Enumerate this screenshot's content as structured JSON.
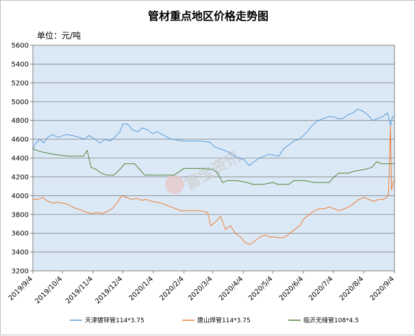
{
  "chart_data": {
    "type": "line",
    "title": "管材重点地区价格走势图",
    "unit_label": "单位：元/吨",
    "watermark": "富宝资讯",
    "ylim": [
      3200,
      5600
    ],
    "ystep": 200,
    "yticks": [
      "3200",
      "3400",
      "3600",
      "3800",
      "4000",
      "4200",
      "4400",
      "4600",
      "4800",
      "5000",
      "5200",
      "5400",
      "5600"
    ],
    "x_start": "2019-09-04",
    "x_end": "2020-09-04",
    "xticks": [
      {
        "label": "2019/9/4",
        "date": "2019-09-04"
      },
      {
        "label": "2019/10/4",
        "date": "2019-10-04"
      },
      {
        "label": "2019/11/4",
        "date": "2019-11-04"
      },
      {
        "label": "2019/12/4",
        "date": "2019-12-04"
      },
      {
        "label": "2020/1/4",
        "date": "2020-01-04"
      },
      {
        "label": "2020/2/4",
        "date": "2020-02-04"
      },
      {
        "label": "2020/3/4",
        "date": "2020-03-04"
      },
      {
        "label": "2020/4/4",
        "date": "2020-04-04"
      },
      {
        "label": "2020/5/4",
        "date": "2020-05-04"
      },
      {
        "label": "2020/6/4",
        "date": "2020-06-04"
      },
      {
        "label": "2020/7/4",
        "date": "2020-07-04"
      },
      {
        "label": "2020/8/4",
        "date": "2020-08-04"
      },
      {
        "label": "2020/9/4",
        "date": "2020-09-04"
      }
    ],
    "grid": true,
    "legend_position": "bottom",
    "plot_bg": "#dbe9f7",
    "series": [
      {
        "name": "天津镀锌管114*3.75",
        "color": "#5b9bd5",
        "points": [
          [
            "2019-09-04",
            4500
          ],
          [
            "2019-09-07",
            4560
          ],
          [
            "2019-09-11",
            4600
          ],
          [
            "2019-09-15",
            4560
          ],
          [
            "2019-09-19",
            4620
          ],
          [
            "2019-09-24",
            4650
          ],
          [
            "2019-09-29",
            4620
          ],
          [
            "2019-10-08",
            4650
          ],
          [
            "2019-10-14",
            4640
          ],
          [
            "2019-10-21",
            4620
          ],
          [
            "2019-10-26",
            4600
          ],
          [
            "2019-10-31",
            4640
          ],
          [
            "2019-11-06",
            4600
          ],
          [
            "2019-11-11",
            4560
          ],
          [
            "2019-11-16",
            4600
          ],
          [
            "2019-11-21",
            4580
          ],
          [
            "2019-11-26",
            4620
          ],
          [
            "2019-12-01",
            4680
          ],
          [
            "2019-12-04",
            4760
          ],
          [
            "2019-12-09",
            4760
          ],
          [
            "2019-12-14",
            4700
          ],
          [
            "2019-12-19",
            4680
          ],
          [
            "2019-12-24",
            4720
          ],
          [
            "2019-12-29",
            4700
          ],
          [
            "2020-01-03",
            4660
          ],
          [
            "2020-01-08",
            4680
          ],
          [
            "2020-01-13",
            4650
          ],
          [
            "2020-01-18",
            4620
          ],
          [
            "2020-01-23",
            4600
          ],
          [
            "2020-02-04",
            4580
          ],
          [
            "2020-02-20",
            4580
          ],
          [
            "2020-03-01",
            4570
          ],
          [
            "2020-03-06",
            4520
          ],
          [
            "2020-03-11",
            4500
          ],
          [
            "2020-03-16",
            4480
          ],
          [
            "2020-03-21",
            4460
          ],
          [
            "2020-03-26",
            4420
          ],
          [
            "2020-03-31",
            4400
          ],
          [
            "2020-04-05",
            4380
          ],
          [
            "2020-04-10",
            4320
          ],
          [
            "2020-04-15",
            4360
          ],
          [
            "2020-04-20",
            4400
          ],
          [
            "2020-04-25",
            4420
          ],
          [
            "2020-04-30",
            4440
          ],
          [
            "2020-05-05",
            4430
          ],
          [
            "2020-05-10",
            4420
          ],
          [
            "2020-05-15",
            4500
          ],
          [
            "2020-05-20",
            4540
          ],
          [
            "2020-05-25",
            4580
          ],
          [
            "2020-05-30",
            4600
          ],
          [
            "2020-06-04",
            4640
          ],
          [
            "2020-06-09",
            4700
          ],
          [
            "2020-06-14",
            4760
          ],
          [
            "2020-06-19",
            4800
          ],
          [
            "2020-06-24",
            4820
          ],
          [
            "2020-06-29",
            4840
          ],
          [
            "2020-07-04",
            4840
          ],
          [
            "2020-07-09",
            4820
          ],
          [
            "2020-07-14",
            4820
          ],
          [
            "2020-07-19",
            4860
          ],
          [
            "2020-07-24",
            4880
          ],
          [
            "2020-07-29",
            4920
          ],
          [
            "2020-08-03",
            4900
          ],
          [
            "2020-08-08",
            4860
          ],
          [
            "2020-08-13",
            4800
          ],
          [
            "2020-08-18",
            4820
          ],
          [
            "2020-08-23",
            4840
          ],
          [
            "2020-08-28",
            4880
          ],
          [
            "2020-08-31",
            4750
          ],
          [
            "2020-09-02",
            4840
          ],
          [
            "2020-09-04",
            4840
          ]
        ]
      },
      {
        "name": "唐山焊管114*3.75",
        "color": "#ed7d31",
        "points": [
          [
            "2019-09-04",
            3960
          ],
          [
            "2019-09-09",
            3960
          ],
          [
            "2019-09-14",
            3980
          ],
          [
            "2019-09-19",
            3940
          ],
          [
            "2019-09-24",
            3920
          ],
          [
            "2019-09-29",
            3930
          ],
          [
            "2019-10-04",
            3920
          ],
          [
            "2019-10-09",
            3910
          ],
          [
            "2019-10-14",
            3880
          ],
          [
            "2019-10-19",
            3860
          ],
          [
            "2019-10-24",
            3840
          ],
          [
            "2019-10-29",
            3820
          ],
          [
            "2019-11-03",
            3810
          ],
          [
            "2019-11-08",
            3820
          ],
          [
            "2019-11-13",
            3810
          ],
          [
            "2019-11-18",
            3830
          ],
          [
            "2019-11-23",
            3860
          ],
          [
            "2019-11-28",
            3920
          ],
          [
            "2019-12-03",
            4000
          ],
          [
            "2019-12-08",
            3980
          ],
          [
            "2019-12-13",
            3960
          ],
          [
            "2019-12-18",
            3970
          ],
          [
            "2019-12-23",
            3950
          ],
          [
            "2019-12-28",
            3960
          ],
          [
            "2020-01-02",
            3940
          ],
          [
            "2020-01-07",
            3930
          ],
          [
            "2020-01-12",
            3920
          ],
          [
            "2020-01-17",
            3900
          ],
          [
            "2020-01-22",
            3880
          ],
          [
            "2020-01-27",
            3860
          ],
          [
            "2020-02-01",
            3840
          ],
          [
            "2020-02-20",
            3840
          ],
          [
            "2020-02-28",
            3820
          ],
          [
            "2020-03-02",
            3680
          ],
          [
            "2020-03-07",
            3720
          ],
          [
            "2020-03-12",
            3780
          ],
          [
            "2020-03-17",
            3640
          ],
          [
            "2020-03-22",
            3680
          ],
          [
            "2020-03-27",
            3600
          ],
          [
            "2020-04-01",
            3560
          ],
          [
            "2020-04-06",
            3500
          ],
          [
            "2020-04-11",
            3480
          ],
          [
            "2020-04-16",
            3520
          ],
          [
            "2020-04-21",
            3560
          ],
          [
            "2020-04-26",
            3580
          ],
          [
            "2020-05-01",
            3560
          ],
          [
            "2020-05-06",
            3560
          ],
          [
            "2020-05-11",
            3550
          ],
          [
            "2020-05-16",
            3560
          ],
          [
            "2020-05-21",
            3600
          ],
          [
            "2020-05-26",
            3640
          ],
          [
            "2020-05-31",
            3680
          ],
          [
            "2020-06-05",
            3760
          ],
          [
            "2020-06-10",
            3800
          ],
          [
            "2020-06-15",
            3840
          ],
          [
            "2020-06-20",
            3860
          ],
          [
            "2020-06-25",
            3860
          ],
          [
            "2020-06-30",
            3880
          ],
          [
            "2020-07-05",
            3860
          ],
          [
            "2020-07-10",
            3840
          ],
          [
            "2020-07-15",
            3860
          ],
          [
            "2020-07-20",
            3880
          ],
          [
            "2020-07-25",
            3920
          ],
          [
            "2020-07-30",
            3960
          ],
          [
            "2020-08-04",
            3980
          ],
          [
            "2020-08-09",
            3960
          ],
          [
            "2020-08-14",
            3940
          ],
          [
            "2020-08-19",
            3960
          ],
          [
            "2020-08-24",
            3960
          ],
          [
            "2020-08-29",
            4000
          ],
          [
            "2020-08-31",
            4740
          ],
          [
            "2020-09-01",
            4060
          ],
          [
            "2020-09-03",
            4160
          ],
          [
            "2020-09-04",
            4160
          ]
        ]
      },
      {
        "name": "临沂无缝管108*4.5",
        "color": "#548235",
        "points": [
          [
            "2019-09-04",
            4500
          ],
          [
            "2019-09-08",
            4480
          ],
          [
            "2019-09-15",
            4460
          ],
          [
            "2019-09-25",
            4440
          ],
          [
            "2019-10-10",
            4420
          ],
          [
            "2019-10-25",
            4420
          ],
          [
            "2019-10-29",
            4480
          ],
          [
            "2019-11-02",
            4300
          ],
          [
            "2019-11-07",
            4280
          ],
          [
            "2019-11-12",
            4240
          ],
          [
            "2019-11-17",
            4220
          ],
          [
            "2019-11-25",
            4220
          ],
          [
            "2019-12-01",
            4280
          ],
          [
            "2019-12-06",
            4340
          ],
          [
            "2019-12-16",
            4340
          ],
          [
            "2019-12-21",
            4280
          ],
          [
            "2019-12-26",
            4220
          ],
          [
            "2020-01-15",
            4220
          ],
          [
            "2020-01-25",
            4220
          ],
          [
            "2020-02-04",
            4290
          ],
          [
            "2020-02-20",
            4290
          ],
          [
            "2020-03-04",
            4280
          ],
          [
            "2020-03-09",
            4240
          ],
          [
            "2020-03-14",
            4140
          ],
          [
            "2020-03-19",
            4160
          ],
          [
            "2020-03-29",
            4160
          ],
          [
            "2020-04-08",
            4140
          ],
          [
            "2020-04-14",
            4120
          ],
          [
            "2020-04-24",
            4120
          ],
          [
            "2020-05-04",
            4140
          ],
          [
            "2020-05-09",
            4120
          ],
          [
            "2020-05-20",
            4120
          ],
          [
            "2020-05-25",
            4160
          ],
          [
            "2020-06-05",
            4160
          ],
          [
            "2020-06-15",
            4140
          ],
          [
            "2020-06-30",
            4140
          ],
          [
            "2020-07-05",
            4200
          ],
          [
            "2020-07-10",
            4240
          ],
          [
            "2020-07-20",
            4240
          ],
          [
            "2020-07-25",
            4260
          ],
          [
            "2020-08-05",
            4280
          ],
          [
            "2020-08-12",
            4300
          ],
          [
            "2020-08-17",
            4360
          ],
          [
            "2020-08-22",
            4340
          ],
          [
            "2020-08-27",
            4340
          ],
          [
            "2020-09-04",
            4340
          ]
        ]
      }
    ]
  }
}
